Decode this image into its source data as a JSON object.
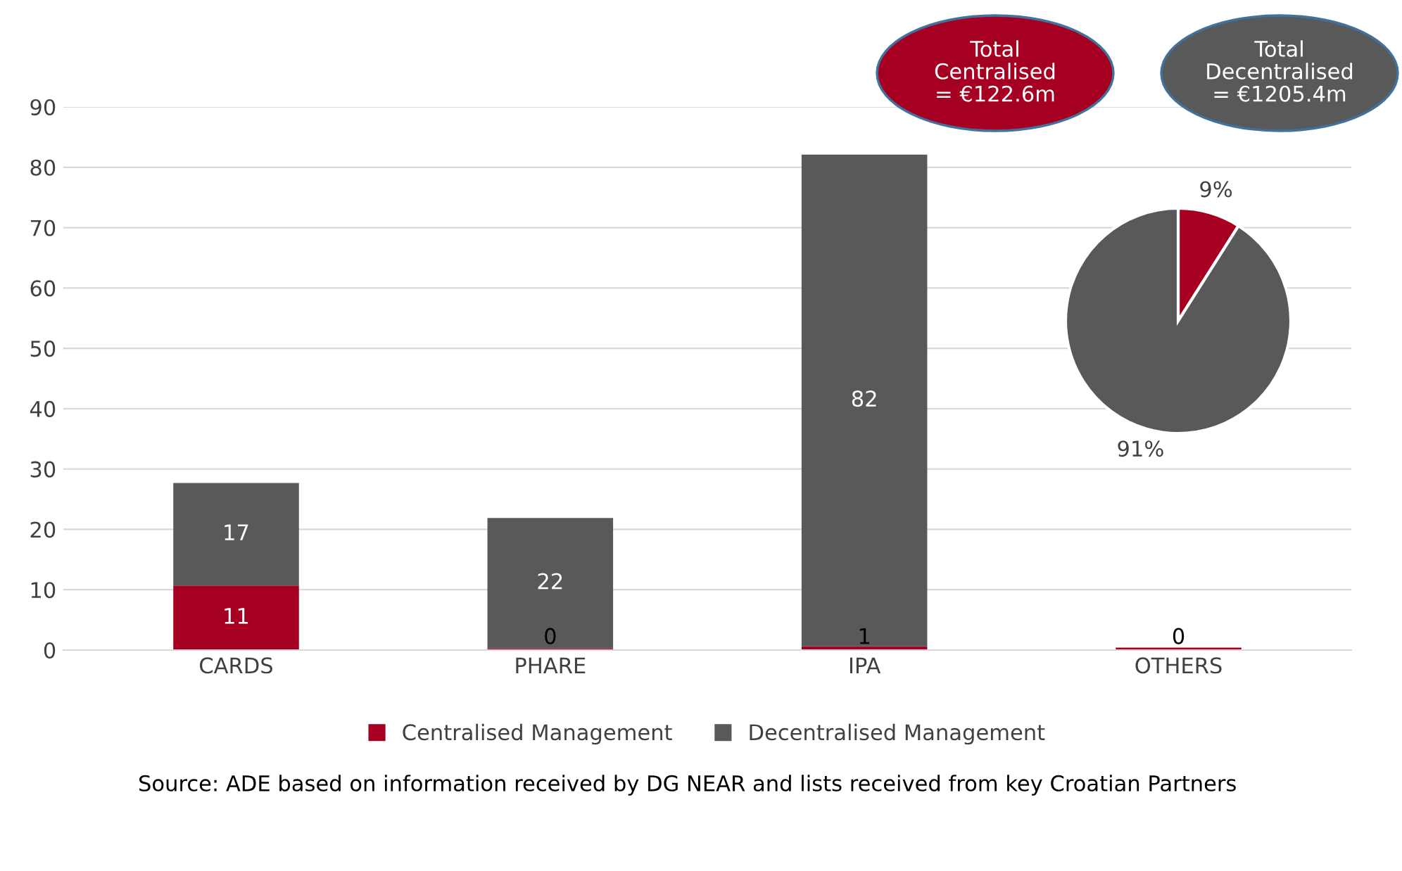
{
  "chart_data": [
    {
      "type": "bar",
      "stacked": true,
      "categories": [
        "CARDS",
        "PHARE",
        "IPA",
        "OTHERS"
      ],
      "series": [
        {
          "name": "Centralised Management",
          "color": "#a50021",
          "values": [
            10.7,
            0.3,
            0.6,
            0.4
          ],
          "value_labels": [
            "11",
            "0",
            "1",
            "0"
          ]
        },
        {
          "name": "Decentralised Management",
          "color": "#595959",
          "values": [
            17.0,
            21.6,
            81.5,
            0
          ],
          "value_labels": [
            "17",
            "22",
            "82",
            null
          ]
        }
      ],
      "ylim": [
        0,
        90
      ],
      "yticks": [
        0,
        10,
        20,
        30,
        40,
        50,
        60,
        70,
        80,
        90
      ],
      "grid": "y",
      "legend": "bottom",
      "annotations": [
        "Source: ADE based on information received by DG NEAR and lists received from key Croatian Partners"
      ]
    },
    {
      "type": "pie",
      "categories": [
        null,
        null
      ],
      "values": [
        9,
        91
      ],
      "colors": [
        "#a50021",
        "#595959"
      ],
      "value_labels": [
        "9%",
        "91%"
      ],
      "annotations": [
        "Total\nCentralised\n= €122.6m",
        "Total\nDecentralised\n= €1205.4m"
      ]
    }
  ]
}
